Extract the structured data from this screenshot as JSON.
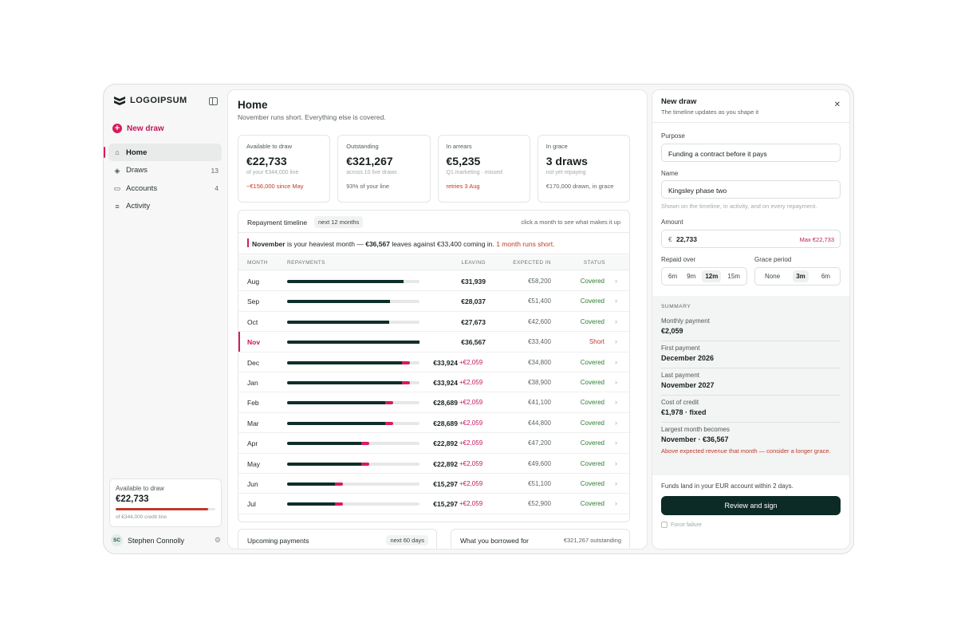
{
  "brand": {
    "logo_text": "LOGOIPSUM"
  },
  "sidebar": {
    "new_draw_label": "New draw",
    "items": [
      {
        "label": "Home",
        "count": "",
        "icon": "home-icon"
      },
      {
        "label": "Draws",
        "count": "13",
        "icon": "layers-icon"
      },
      {
        "label": "Accounts",
        "count": "4",
        "icon": "wallet-icon"
      },
      {
        "label": "Activity",
        "count": "",
        "icon": "list-icon"
      }
    ],
    "available": {
      "label": "Available to draw",
      "value": "€22,733",
      "progress": 0.93,
      "caption": "of €344,000 credit line"
    },
    "user": {
      "initials": "SC",
      "name": "Stephen Connolly"
    }
  },
  "main": {
    "title": "Home",
    "subtitle": "November runs short. Everything else is covered.",
    "stats": [
      {
        "label": "Available to draw",
        "value": "€22,733",
        "sub": "of your €344,000 line",
        "note": "−€156,000 since May",
        "note_red": true
      },
      {
        "label": "Outstanding",
        "value": "€321,267",
        "sub": "across 10 live draws",
        "note": "93% of your line",
        "note_red": false
      },
      {
        "label": "In arrears",
        "value": "€5,235",
        "sub": "Q1 marketing · missed",
        "note": "retries 3 Aug",
        "note_red": true
      },
      {
        "label": "In grace",
        "value": "3 draws",
        "sub": "not yet repaying",
        "note": "€170,000 drawn, in grace",
        "note_red": false
      }
    ],
    "timeline": {
      "title": "Repayment timeline",
      "chip": "next 12 months",
      "hint": "click a month to see what makes it up",
      "alert": {
        "month": "November",
        "mid": " is your heaviest month — ",
        "amount": "€36,567",
        "rest": " leaves against €33,400 coming in. ",
        "red": "1 month runs short."
      },
      "columns": {
        "month": "MONTH",
        "repayments": "REPAYMENTS",
        "leaving": "LEAVING",
        "expected": "EXPECTED IN",
        "status": "STATUS"
      },
      "rows": [
        {
          "month": "Aug",
          "base": 0.88,
          "extra": 0,
          "leaving": "€31,939",
          "extra_label": "",
          "expected": "€58,200",
          "status": "Covered",
          "short": false
        },
        {
          "month": "Sep",
          "base": 0.78,
          "extra": 0,
          "leaving": "€28,037",
          "extra_label": "",
          "expected": "€51,400",
          "status": "Covered",
          "short": false
        },
        {
          "month": "Oct",
          "base": 0.77,
          "extra": 0,
          "leaving": "€27,673",
          "extra_label": "",
          "expected": "€42,600",
          "status": "Covered",
          "short": false
        },
        {
          "month": "Nov",
          "base": 1.0,
          "extra": 0,
          "leaving": "€36,567",
          "extra_label": "",
          "expected": "€33,400",
          "status": "Short",
          "short": true
        },
        {
          "month": "Dec",
          "base": 0.87,
          "extra": 0.06,
          "leaving": "€33,924",
          "extra_label": "+€2,059",
          "expected": "€34,800",
          "status": "Covered",
          "short": false
        },
        {
          "month": "Jan",
          "base": 0.87,
          "extra": 0.06,
          "leaving": "€33,924",
          "extra_label": "+€2,059",
          "expected": "€38,900",
          "status": "Covered",
          "short": false
        },
        {
          "month": "Feb",
          "base": 0.74,
          "extra": 0.06,
          "leaving": "€28,689",
          "extra_label": "+€2,059",
          "expected": "€41,100",
          "status": "Covered",
          "short": false
        },
        {
          "month": "Mar",
          "base": 0.74,
          "extra": 0.06,
          "leaving": "€28,689",
          "extra_label": "+€2,059",
          "expected": "€44,800",
          "status": "Covered",
          "short": false
        },
        {
          "month": "Apr",
          "base": 0.56,
          "extra": 0.06,
          "leaving": "€22,892",
          "extra_label": "+€2,059",
          "expected": "€47,200",
          "status": "Covered",
          "short": false
        },
        {
          "month": "May",
          "base": 0.56,
          "extra": 0.06,
          "leaving": "€22,892",
          "extra_label": "+€2,059",
          "expected": "€49,600",
          "status": "Covered",
          "short": false
        },
        {
          "month": "Jun",
          "base": 0.36,
          "extra": 0.06,
          "leaving": "€15,297",
          "extra_label": "+€2,059",
          "expected": "€51,100",
          "status": "Covered",
          "short": false
        },
        {
          "month": "Jul",
          "base": 0.36,
          "extra": 0.06,
          "leaving": "€15,297",
          "extra_label": "+€2,059",
          "expected": "€52,900",
          "status": "Covered",
          "short": false
        }
      ]
    },
    "upcoming": {
      "title": "Upcoming payments",
      "chip": "next 60 days"
    },
    "borrowed": {
      "title": "What you borrowed for",
      "right": "€321,267 outstanding"
    }
  },
  "panel": {
    "title": "New draw",
    "subtitle": "The timeline updates as you shape it",
    "purpose_label": "Purpose",
    "purpose_value": "Funding a contract before it pays",
    "name_label": "Name",
    "name_value": "Kingsley phase two",
    "name_help": "Shown on the timeline, in activity, and on every repayment.",
    "amount_label": "Amount",
    "amount_currency": "€",
    "amount_value": "22,733",
    "amount_max": "Max €22,733",
    "repaid_label": "Repaid over",
    "repaid_options": [
      "6m",
      "9m",
      "12m",
      "15m"
    ],
    "repaid_selected": "12m",
    "grace_label": "Grace period",
    "grace_options": [
      "None",
      "3m",
      "6m"
    ],
    "grace_selected": "3m",
    "summary_heading": "SUMMARY",
    "summary": [
      {
        "k": "Monthly payment",
        "v": "€2,059",
        "w": ""
      },
      {
        "k": "First payment",
        "v": "December 2026",
        "w": ""
      },
      {
        "k": "Last payment",
        "v": "November 2027",
        "w": ""
      },
      {
        "k": "Cost of credit",
        "v": "€1,978 · fixed",
        "w": ""
      },
      {
        "k": "Largest month becomes",
        "v": "November · €36,567",
        "w": "Above expected revenue that month — consider a longer grace."
      }
    ],
    "funds_note": "Funds land in your EUR account within 2 days.",
    "cta_label": "Review and sign",
    "force_failure_label": "Force failure"
  }
}
